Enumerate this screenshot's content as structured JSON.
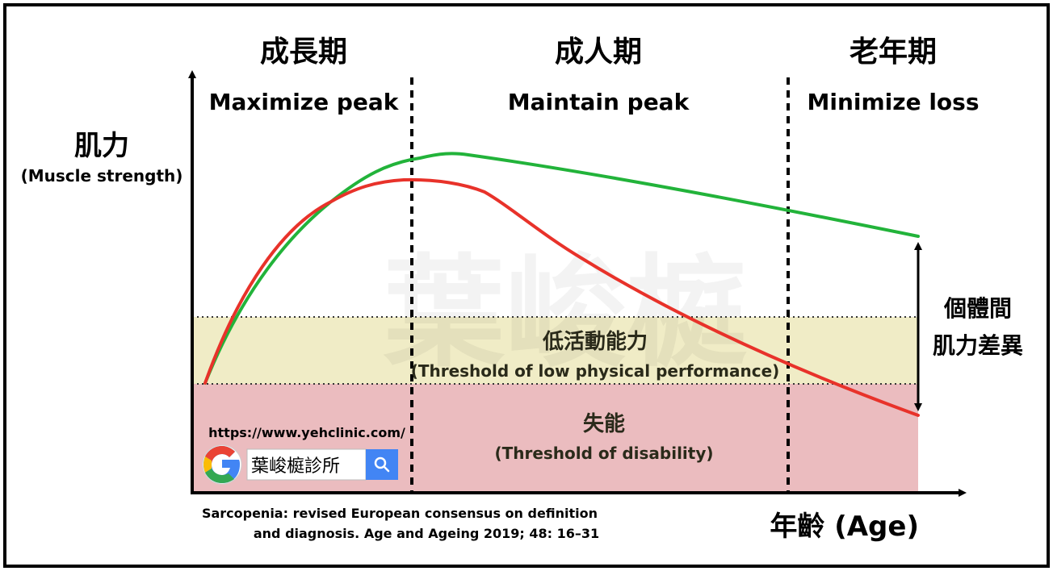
{
  "phases": [
    {
      "title": "成長期",
      "goal": "Maximize peak"
    },
    {
      "title": "成人期",
      "goal": "Maintain peak"
    },
    {
      "title": "老年期",
      "goal": "Minimize loss"
    }
  ],
  "y_axis": {
    "label": "肌力",
    "sublabel": "(Muscle strength)"
  },
  "x_axis": {
    "label": "年齡 (Age)"
  },
  "zones": {
    "low_performance": {
      "label": "低活動能力",
      "sublabel": "(Threshold of low physical performance)",
      "color": "#f0ecc6"
    },
    "disability": {
      "label": "失能",
      "sublabel": "(Threshold of disability)",
      "color": "#ebbcbf"
    }
  },
  "difference_label": {
    "line1": "個體間",
    "line2": "肌力差異"
  },
  "curves": {
    "upper_color": "#22b33a",
    "lower_color": "#e8322a"
  },
  "citation": {
    "line1": "Sarcopenia: revised European consensus on definition",
    "line2": "and diagnosis. Age and Ageing 2019; 48: 16–31"
  },
  "watermark": "葉峻榳",
  "search_badge": {
    "url": "https://www.yehclinic.com/",
    "query": "葉峻榳診所",
    "logo_icon": "google-g-icon",
    "button_icon": "search-icon",
    "button_color": "#4285f4"
  }
}
